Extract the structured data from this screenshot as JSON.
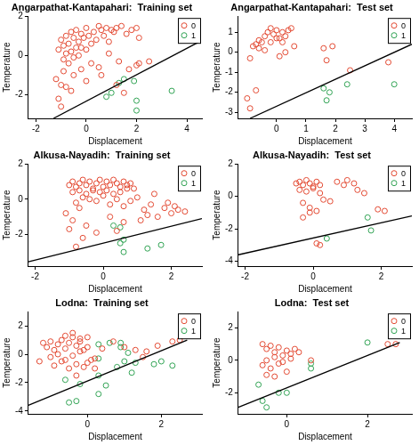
{
  "chart_data": [
    {
      "type": "scatter",
      "title": "Angarpathat-Kantapahari:  Training set",
      "x_label": "Displacement",
      "y_label": "Temperature",
      "xlim": [
        -2.3,
        4.6
      ],
      "xticks": [
        -2,
        0,
        2,
        4
      ],
      "ylim": [
        -3.2,
        2.0
      ],
      "yticks": [
        -2,
        0,
        2
      ],
      "grid": false,
      "legend": "top-right",
      "series": [
        {
          "name": "0",
          "color": "#e34a33",
          "marker": "circle",
          "x": [
            -1.1,
            -1.0,
            -0.9,
            -0.9,
            -0.8,
            -0.8,
            -0.7,
            -0.7,
            -0.6,
            -0.6,
            -0.5,
            -0.5,
            -0.4,
            -0.4,
            -0.3,
            -0.3,
            -0.2,
            -0.2,
            -0.1,
            0.0,
            0.0,
            0.1,
            0.2,
            0.3,
            0.4,
            0.5,
            0.6,
            0.7,
            0.8,
            0.9,
            1.0,
            1.1,
            1.2,
            1.4,
            1.6,
            1.8,
            2.0,
            2.1,
            -1.2,
            -1.1,
            -1.0,
            -0.9,
            -0.8,
            -0.5,
            -0.2,
            0.2,
            0.5,
            0.9,
            1.3,
            1.7,
            2.0,
            -1.0,
            -0.6,
            0.0,
            0.6,
            1.2,
            1.5,
            2.1,
            2.5
          ],
          "values": [
            0.3,
            0.8,
            -0.2,
            0.5,
            1.0,
            0.1,
            0.6,
            -0.4,
            1.2,
            0.2,
            0.9,
            -0.1,
            0.4,
            1.3,
            0.7,
            0.0,
            1.1,
            0.4,
            0.9,
            1.4,
            0.3,
            1.0,
            0.6,
            1.2,
            0.8,
            1.5,
            1.3,
            1.0,
            1.4,
            0.7,
            1.3,
            1.2,
            1.4,
            1.5,
            1.1,
            1.3,
            1.4,
            0.9,
            -1.2,
            -2.2,
            -1.5,
            -0.8,
            -1.6,
            -1.0,
            -0.7,
            -0.4,
            -0.6,
            0.1,
            -0.3,
            -0.7,
            -0.5,
            -2.6,
            -1.8,
            -1.3,
            -1.0,
            -1.5,
            -1.9,
            -0.4,
            -0.3
          ]
        },
        {
          "name": "1",
          "color": "#31a354",
          "marker": "circle",
          "x": [
            0.8,
            1.0,
            1.3,
            1.5,
            1.9,
            2.0,
            2.0,
            3.4
          ],
          "values": [
            -2.1,
            -1.9,
            -1.4,
            -1.2,
            -1.3,
            -2.3,
            -2.8,
            -1.8
          ]
        },
        {
          "type": "line",
          "color": "#000000",
          "line_style": "solid",
          "x": [
            -1.3,
            4.5
          ],
          "values": [
            -3.2,
            0.7
          ]
        }
      ]
    },
    {
      "type": "scatter",
      "title": "Angarpathat-Kantapahari:  Test set",
      "x_label": "Displacement",
      "y_label": "Temperature",
      "xlim": [
        -1.3,
        4.6
      ],
      "xticks": [
        0,
        1,
        2,
        3,
        4
      ],
      "ylim": [
        -3.3,
        1.8
      ],
      "yticks": [
        -3,
        -2,
        -1,
        0,
        1
      ],
      "grid": false,
      "legend": "top-right",
      "series": [
        {
          "name": "0",
          "color": "#e34a33",
          "marker": "circle",
          "x": [
            -0.8,
            -0.7,
            -0.6,
            -0.5,
            -0.4,
            -0.3,
            -0.2,
            -0.1,
            0.0,
            0.1,
            0.2,
            0.3,
            0.4,
            0.5,
            -0.6,
            -0.4,
            -0.2,
            0.0,
            0.2,
            0.3,
            0.6,
            0.1,
            -0.9,
            -1.0,
            -0.9,
            -0.7,
            1.6,
            1.7,
            1.9,
            2.5,
            3.8
          ],
          "values": [
            0.3,
            0.4,
            0.2,
            0.5,
            0.8,
            1.0,
            1.2,
            0.9,
            1.1,
            0.7,
            1.0,
            0.8,
            1.1,
            1.2,
            0.6,
            0.1,
            0.5,
            0.7,
            0.5,
            0.0,
            0.3,
            -0.2,
            -0.3,
            -2.3,
            -2.8,
            -1.9,
            0.2,
            -0.4,
            0.3,
            -0.9,
            -0.5
          ]
        },
        {
          "name": "1",
          "color": "#31a354",
          "marker": "circle",
          "x": [
            1.6,
            1.7,
            1.8,
            2.4,
            4.0
          ],
          "values": [
            -1.8,
            -2.4,
            -2.0,
            -1.6,
            -1.6
          ]
        },
        {
          "type": "line",
          "color": "#000000",
          "line_style": "solid",
          "x": [
            -0.9,
            4.6
          ],
          "values": [
            -3.3,
            0.4
          ]
        }
      ]
    },
    {
      "type": "scatter",
      "title": "Alkusa-Nayadih:  Training set",
      "x_label": "Displacement",
      "y_label": "Temperature",
      "xlim": [
        -2.2,
        2.9
      ],
      "xticks": [
        -2,
        0,
        2
      ],
      "ylim": [
        -3.8,
        2.0
      ],
      "yticks": [
        -2,
        0,
        2
      ],
      "grid": false,
      "legend": "top-right",
      "series": [
        {
          "name": "0",
          "color": "#e34a33",
          "marker": "circle",
          "x": [
            -1.0,
            -0.9,
            -0.8,
            -0.7,
            -0.6,
            -0.5,
            -0.4,
            -0.3,
            -0.2,
            -0.1,
            0.0,
            0.1,
            0.2,
            0.3,
            0.4,
            0.5,
            0.6,
            0.7,
            0.8,
            0.9,
            -0.9,
            -0.7,
            -0.5,
            -0.3,
            -0.1,
            0.1,
            0.3,
            0.5,
            0.7,
            -0.8,
            -0.6,
            -0.4,
            -0.2,
            0.0,
            0.2,
            0.4,
            0.6,
            -1.1,
            -1.0,
            -0.9,
            -0.7,
            -0.6,
            -0.8,
            -0.5,
            0.2,
            0.8,
            1.0,
            1.2,
            1.4,
            1.6,
            1.8,
            2.0,
            2.2,
            2.4,
            1.1,
            1.5,
            1.9,
            0.6,
            1.3,
            2.1,
            -0.2,
            0.4
          ],
          "values": [
            0.8,
            1.0,
            0.7,
            0.9,
            1.1,
            0.8,
            1.0,
            0.6,
            0.9,
            1.1,
            0.7,
            1.0,
            0.8,
            1.1,
            0.9,
            0.7,
            1.0,
            0.8,
            0.9,
            0.6,
            0.4,
            0.5,
            0.3,
            0.5,
            0.4,
            0.5,
            0.3,
            0.4,
            0.6,
            -0.2,
            0.1,
            0.0,
            -0.1,
            0.2,
            -0.3,
            0.0,
            -0.4,
            -0.8,
            -1.7,
            -1.2,
            -0.5,
            -2.2,
            -2.7,
            -1.5,
            -1.0,
            -0.1,
            0.1,
            -0.6,
            -0.3,
            -1.0,
            -0.5,
            -0.8,
            -0.6,
            -0.7,
            -1.2,
            0.3,
            -0.2,
            -1.3,
            -0.9,
            -0.4,
            -1.9,
            -1.8
          ]
        },
        {
          "name": "1",
          "color": "#31a354",
          "marker": "circle",
          "x": [
            0.3,
            0.5,
            0.6,
            0.6,
            1.3,
            1.7,
            0.5
          ],
          "values": [
            -1.5,
            -1.6,
            -2.3,
            -3.0,
            -2.8,
            -2.6,
            -2.5
          ]
        },
        {
          "type": "line",
          "color": "#000000",
          "line_style": "solid",
          "x": [
            -2.2,
            2.9
          ],
          "values": [
            -3.55,
            -1.1
          ]
        }
      ]
    },
    {
      "type": "scatter",
      "title": "Alkusa-Nayadih:  Test set",
      "x_label": "Displacement",
      "y_label": "Temperature",
      "xlim": [
        -2.2,
        2.9
      ],
      "xticks": [
        -2,
        0,
        2
      ],
      "ylim": [
        -4.3,
        2.0
      ],
      "yticks": [
        -4,
        -2,
        0,
        2
      ],
      "grid": false,
      "legend": "top-right",
      "series": [
        {
          "name": "0",
          "color": "#e34a33",
          "marker": "circle",
          "x": [
            -0.5,
            -0.4,
            -0.3,
            -0.2,
            -0.1,
            0.0,
            0.1,
            0.2,
            -0.4,
            -0.2,
            0.0,
            0.2,
            -0.3,
            -0.1,
            0.1,
            0.3,
            0.7,
            0.9,
            1.0,
            1.2,
            1.3,
            1.5,
            0.5,
            -0.3,
            -0.1,
            1.9,
            2.1,
            0.1,
            0.2
          ],
          "values": [
            0.8,
            0.9,
            0.7,
            1.0,
            0.8,
            0.6,
            0.9,
            0.7,
            0.4,
            0.3,
            0.5,
            0.2,
            -0.4,
            -0.7,
            -0.9,
            -0.2,
            0.9,
            0.7,
            1.0,
            0.8,
            0.4,
            0.2,
            -0.3,
            -1.3,
            -1.0,
            -0.8,
            -0.9,
            -2.9,
            -3.0
          ]
        },
        {
          "name": "1",
          "color": "#31a354",
          "marker": "circle",
          "x": [
            0.4,
            1.6,
            1.7
          ],
          "values": [
            -2.6,
            -1.3,
            -2.1
          ]
        },
        {
          "type": "line",
          "color": "#000000",
          "line_style": "solid",
          "x": [
            -2.2,
            2.9
          ],
          "values": [
            -3.6,
            -1.2
          ]
        }
      ]
    },
    {
      "type": "scatter",
      "title": "Lodna:  Training set",
      "x_label": "Displacement",
      "y_label": "Temperature",
      "xlim": [
        -1.6,
        3.1
      ],
      "xticks": [
        0,
        2
      ],
      "ylim": [
        -4.2,
        3.0
      ],
      "yticks": [
        -4,
        -2,
        0,
        2
      ],
      "grid": false,
      "legend": "top-right",
      "series": [
        {
          "name": "0",
          "color": "#e34a33",
          "marker": "circle",
          "x": [
            -1.2,
            -1.1,
            -1.0,
            -0.9,
            -0.8,
            -0.7,
            -0.6,
            -0.5,
            -0.4,
            -0.3,
            -0.2,
            -0.1,
            0.0,
            -1.0,
            -0.8,
            -0.6,
            -0.4,
            -0.2,
            0.0,
            0.2,
            -0.9,
            -0.7,
            -0.5,
            -0.3,
            -0.1,
            0.1,
            -0.6,
            -0.4,
            -0.2,
            0.0,
            0.4,
            0.7,
            1.0,
            1.3,
            1.6,
            1.9,
            2.3,
            2.5,
            -1.3,
            -0.3,
            0.2,
            1.5
          ],
          "values": [
            0.8,
            0.5,
            0.9,
            0.3,
            0.7,
            1.0,
            0.4,
            0.8,
            1.2,
            0.6,
            0.9,
            0.3,
            0.5,
            -0.2,
            0.0,
            -0.4,
            -0.1,
            0.2,
            -0.6,
            -0.3,
            -0.8,
            -0.5,
            -1.0,
            -0.7,
            -0.9,
            -0.4,
            1.3,
            1.5,
            1.1,
            1.2,
            0.4,
            0.9,
            0.5,
            0.3,
            0.2,
            0.6,
            0.9,
            1.0,
            -0.5,
            -1.5,
            -1.0,
            -0.2
          ]
        },
        {
          "name": "1",
          "color": "#31a354",
          "marker": "circle",
          "x": [
            0.3,
            0.6,
            0.9,
            0.9,
            1.1,
            0.3,
            1.0,
            0.8,
            1.3,
            1.8,
            2.0,
            2.3,
            0.3,
            0.5,
            -0.2,
            -0.5,
            -0.3,
            0.3,
            1.2,
            -0.6
          ],
          "values": [
            0.7,
            0.8,
            0.8,
            0.5,
            0.1,
            -0.3,
            -0.5,
            -0.9,
            -0.6,
            -0.7,
            -0.5,
            -0.8,
            -1.5,
            -2.2,
            -2.1,
            -3.4,
            -3.3,
            -2.8,
            -1.3,
            -1.8
          ]
        },
        {
          "type": "line",
          "color": "#000000",
          "line_style": "solid",
          "x": [
            -1.6,
            2.7
          ],
          "values": [
            -3.6,
            1.0
          ]
        }
      ]
    },
    {
      "type": "scatter",
      "title": "Lodna:  Test set",
      "x_label": "Displacement",
      "y_label": "Temperature",
      "xlim": [
        -1.2,
        3.1
      ],
      "xticks": [
        0,
        2
      ],
      "ylim": [
        -3.3,
        3.0
      ],
      "yticks": [
        -2,
        0,
        2
      ],
      "grid": false,
      "legend": "top-right",
      "series": [
        {
          "name": "0",
          "color": "#e34a33",
          "marker": "circle",
          "x": [
            -0.6,
            -0.5,
            -0.4,
            -0.3,
            -0.2,
            -0.1,
            0.0,
            0.1,
            0.2,
            0.3,
            -0.5,
            -0.3,
            -0.1,
            0.1,
            -0.6,
            -0.4,
            -0.2,
            0.0,
            -0.5,
            -0.3,
            2.5,
            2.7,
            0.6
          ],
          "values": [
            1.0,
            0.7,
            0.9,
            0.5,
            0.8,
            0.3,
            0.6,
            0.4,
            0.7,
            0.5,
            0.0,
            0.2,
            -0.1,
            0.1,
            -0.3,
            -0.5,
            -0.2,
            -0.7,
            -0.9,
            -1.0,
            1.0,
            1.0,
            0.0
          ]
        },
        {
          "name": "1",
          "color": "#31a354",
          "marker": "circle",
          "x": [
            -0.7,
            -0.6,
            -0.5,
            -0.2,
            0.0,
            0.6,
            0.6,
            2.0
          ],
          "values": [
            -1.5,
            -2.5,
            -2.9,
            -2.0,
            -2.0,
            -0.5,
            -0.2,
            1.1
          ]
        },
        {
          "type": "line",
          "color": "#000000",
          "line_style": "solid",
          "x": [
            -1.2,
            2.8
          ],
          "values": [
            -2.9,
            1.1
          ]
        }
      ]
    }
  ]
}
